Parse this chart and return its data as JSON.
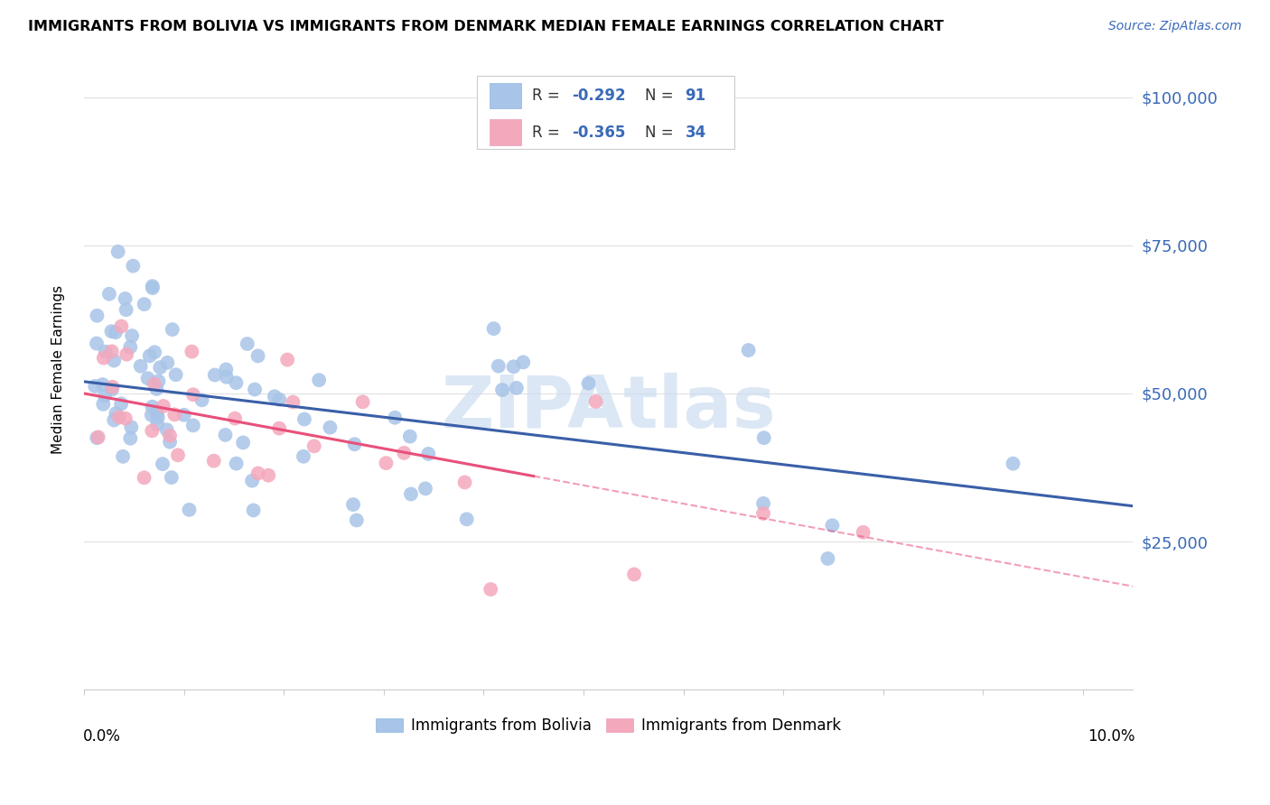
{
  "title": "IMMIGRANTS FROM BOLIVIA VS IMMIGRANTS FROM DENMARK MEDIAN FEMALE EARNINGS CORRELATION CHART",
  "source": "Source: ZipAtlas.com",
  "ylabel": "Median Female Earnings",
  "yticks": [
    0,
    25000,
    50000,
    75000,
    100000
  ],
  "ytick_labels": [
    "",
    "$25,000",
    "$50,000",
    "$75,000",
    "$100,000"
  ],
  "xlim": [
    0.0,
    0.105
  ],
  "ylim": [
    0,
    108000
  ],
  "bolivia_color": "#a8c4e8",
  "denmark_color": "#f4a8bc",
  "bolivia_line_color": "#3a5fa8",
  "denmark_line_color": "#e8507a",
  "legend_color": "#3a6ab8",
  "watermark_color": "#ccddf0",
  "bolivia_intercept": 52000,
  "bolivia_slope": -200000,
  "denmark_intercept": 50000,
  "denmark_slope": -310000,
  "bolivia_line_x_end": 0.105,
  "denmark_line_x_solid_end": 0.045,
  "denmark_line_x_dash_end": 0.105
}
